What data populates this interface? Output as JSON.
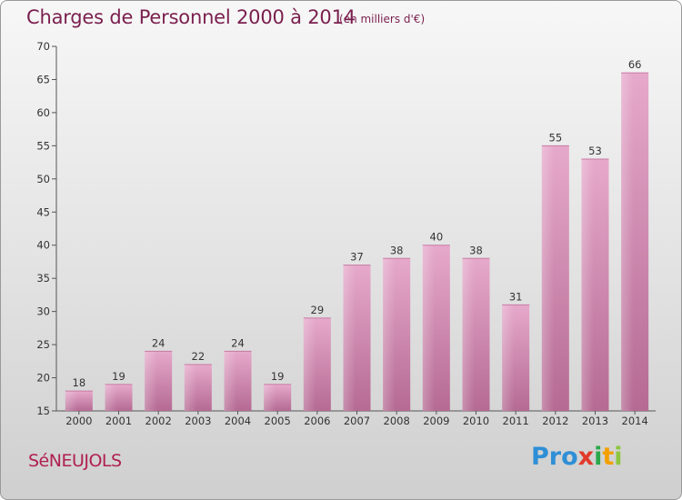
{
  "header": {
    "title": "Charges de Personnel 2000 à 2014",
    "subtitle": "(en milliers d'€)"
  },
  "footer": {
    "commune": "SéNEUJOLS",
    "logo_parts": [
      "Pro",
      "x",
      "i",
      "t",
      "i"
    ]
  },
  "colors": {
    "bar": "#d98ab5",
    "bar_dark": "#b45d8c",
    "title": "#7a1f4e",
    "commune": "#b0204f"
  },
  "chart_data": {
    "type": "bar",
    "categories": [
      "2000",
      "2001",
      "2002",
      "2003",
      "2004",
      "2005",
      "2006",
      "2007",
      "2008",
      "2009",
      "2010",
      "2011",
      "2012",
      "2013",
      "2014"
    ],
    "values": [
      18,
      19,
      24,
      22,
      24,
      19,
      29,
      37,
      38,
      40,
      38,
      31,
      55,
      53,
      66
    ],
    "title": "Charges de Personnel 2000 à 2014",
    "subtitle": "(en milliers d'€)",
    "xlabel": "",
    "ylabel": "",
    "ylim": [
      15,
      70
    ],
    "yticks": [
      15,
      20,
      25,
      30,
      35,
      40,
      45,
      50,
      55,
      60,
      65,
      70
    ],
    "grid": false,
    "legend": "none"
  }
}
